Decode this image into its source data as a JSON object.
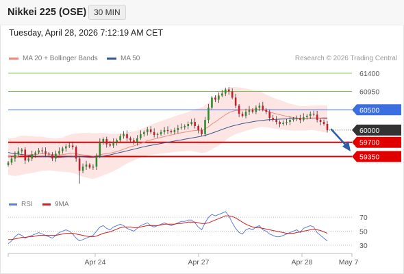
{
  "header": {
    "title": "Nikkei 225 (OSE)",
    "timeframe": "30 MIN",
    "datetime": "Tuesday, April 28, 2026 7:12:19 AM CET"
  },
  "legend": {
    "ma20_label": "MA 20 + Bollinger Bands",
    "ma50_label": "MA 50",
    "rsi_label": "RSI",
    "rsi_ma_label": "9MA",
    "credit": "Research © 2026 Trading Central"
  },
  "colors": {
    "ma20": "#f08a80",
    "ma50": "#34578f",
    "bollinger_fill": "#fde0de",
    "resistance": "#7ec04e",
    "pivot": "#3b6fe0",
    "support": "#e00000",
    "last_price": "#333333",
    "arrow": "#2a5fa8",
    "rsi": "#5b7fd8",
    "rsi_ma": "#d81b1b",
    "candle_up": "#2e8b2e",
    "candle_down": "#c0202a"
  },
  "chart_data": [
    {
      "type": "candlestick",
      "title": "Nikkei 225 (OSE)",
      "interval": "30 MIN",
      "x_tick_labels": [
        "Apr 24",
        "Apr 27",
        "Apr 28",
        "May 7"
      ],
      "ylim": [
        58650,
        61600
      ],
      "levels": [
        {
          "value": 61400,
          "label": "61400",
          "kind": "resistance"
        },
        {
          "value": 60950,
          "label": "60950",
          "kind": "resistance"
        },
        {
          "value": 60500,
          "label": "60500",
          "kind": "pivot"
        },
        {
          "value": 60000,
          "label": "60000",
          "kind": "last"
        },
        {
          "value": 59700,
          "label": "59700",
          "kind": "support"
        },
        {
          "value": 59350,
          "label": "59350",
          "kind": "support"
        }
      ],
      "close": [
        59200,
        59300,
        59400,
        59480,
        59520,
        59250,
        59300,
        59400,
        59450,
        59500,
        59480,
        59420,
        59400,
        59300,
        59420,
        59480,
        59550,
        59600,
        59620,
        59580,
        59300,
        59000,
        59100,
        59150,
        59080,
        59100,
        59350,
        59700,
        59780,
        59650,
        59620,
        59700,
        59750,
        59850,
        59900,
        59800,
        59750,
        59700,
        59800,
        59900,
        59950,
        60020,
        59950,
        59880,
        59900,
        59950,
        60000,
        59980,
        59950,
        60000,
        60050,
        60070,
        60100,
        60150,
        60200,
        60100,
        60000,
        59900,
        60250,
        60550,
        60800,
        60750,
        60850,
        60900,
        61000,
        60950,
        60800,
        60600,
        60400,
        60350,
        60450,
        60500,
        60450,
        60550,
        60600,
        60500,
        60450,
        60300,
        60250,
        60200,
        60150,
        60180,
        60200,
        60250,
        60280,
        60300,
        60250,
        60320,
        60350,
        60400,
        60380,
        60250,
        60200,
        60150,
        60000
      ],
      "ma20": [
        59350,
        59340,
        59340,
        59360,
        59380,
        59390,
        59390,
        59400,
        59400,
        59410,
        59420,
        59410,
        59410,
        59400,
        59390,
        59390,
        59395,
        59410,
        59420,
        59430,
        59420,
        59400,
        59390,
        59380,
        59370,
        59360,
        59370,
        59390,
        59410,
        59420,
        59430,
        59450,
        59470,
        59500,
        59530,
        59560,
        59590,
        59610,
        59640,
        59670,
        59700,
        59740,
        59760,
        59780,
        59800,
        59820,
        59840,
        59860,
        59880,
        59900,
        59920,
        59935,
        59950,
        59965,
        59980,
        59990,
        59995,
        60000,
        60030,
        60080,
        60150,
        60200,
        60260,
        60320,
        60380,
        60430,
        60460,
        60480,
        60490,
        60495,
        60500,
        60505,
        60505,
        60510,
        60510,
        60500,
        60470,
        60450,
        60420,
        60400,
        60380,
        60360,
        60340,
        60320,
        60310,
        60300,
        60290,
        60290,
        60290,
        60300,
        60300,
        60295,
        60290,
        60280,
        60270
      ],
      "ma50": [
        59450,
        59430,
        59420,
        59410,
        59400,
        59390,
        59380,
        59370,
        59360,
        59355,
        59350,
        59345,
        59340,
        59335,
        59330,
        59330,
        59335,
        59340,
        59345,
        59350,
        59350,
        59345,
        59340,
        59335,
        59330,
        59330,
        59335,
        59345,
        59360,
        59375,
        59390,
        59410,
        59430,
        59450,
        59470,
        59490,
        59510,
        59530,
        59550,
        59570,
        59590,
        59610,
        59625,
        59640,
        59655,
        59670,
        59685,
        59700,
        59715,
        59730,
        59745,
        59760,
        59775,
        59790,
        59805,
        59820,
        59835,
        59850,
        59870,
        59895,
        59925,
        59955,
        59985,
        60015,
        60045,
        60075,
        60100,
        60120,
        60140,
        60160,
        60175,
        60190,
        60205,
        60220,
        60230,
        60240,
        60250,
        60255,
        60260,
        60265,
        60270,
        60272,
        60275,
        60278,
        60280,
        60282,
        60285,
        60287,
        60290,
        60292,
        60294,
        60295,
        60296,
        60297,
        60298
      ],
      "bb_width": [
        450,
        460,
        470,
        480,
        480,
        470,
        460,
        450,
        440,
        430,
        420,
        410,
        400,
        400,
        400,
        410,
        420,
        440,
        460,
        480,
        500,
        520,
        540,
        550,
        560,
        560,
        550,
        540,
        520,
        500,
        480,
        460,
        440,
        420,
        400,
        380,
        370,
        360,
        350,
        350,
        350,
        360,
        370,
        380,
        390,
        400,
        410,
        420,
        430,
        440,
        450,
        460,
        470,
        480,
        500,
        520,
        540,
        560,
        580,
        600,
        620,
        630,
        640,
        640,
        630,
        620,
        600,
        580,
        560,
        540,
        520,
        500,
        480,
        460,
        440,
        420,
        400,
        390,
        380,
        370,
        360,
        350,
        340,
        330,
        320,
        310,
        300,
        300,
        300,
        300,
        300,
        310,
        320,
        330,
        340
      ]
    },
    {
      "type": "line",
      "series": [
        {
          "name": "RSI"
        },
        {
          "name": "9MA"
        }
      ],
      "y_tick_labels": [
        "70",
        "50",
        "30"
      ],
      "ylim": [
        20,
        80
      ],
      "rsi": [
        32,
        36,
        42,
        46,
        44,
        40,
        42,
        44,
        46,
        48,
        46,
        44,
        42,
        40,
        44,
        48,
        50,
        52,
        50,
        46,
        40,
        36,
        38,
        40,
        42,
        44,
        50,
        56,
        58,
        54,
        52,
        56,
        58,
        60,
        58,
        54,
        52,
        50,
        54,
        58,
        60,
        62,
        58,
        56,
        58,
        60,
        62,
        60,
        58,
        60,
        62,
        64,
        64,
        66,
        66,
        62,
        56,
        52,
        62,
        70,
        74,
        72,
        74,
        76,
        78,
        72,
        62,
        54,
        48,
        46,
        52,
        54,
        52,
        56,
        58,
        52,
        50,
        46,
        44,
        42,
        42,
        44,
        46,
        48,
        50,
        52,
        48,
        54,
        56,
        58,
        56,
        48,
        44,
        40,
        36
      ],
      "rsi_ma": [
        38,
        38,
        39,
        40,
        41,
        41,
        42,
        42,
        43,
        44,
        44,
        44,
        44,
        44,
        44,
        45,
        46,
        47,
        47,
        47,
        46,
        45,
        44,
        43,
        42,
        42,
        43,
        45,
        47,
        48,
        49,
        51,
        53,
        55,
        56,
        56,
        56,
        55,
        55,
        56,
        57,
        58,
        58,
        58,
        58,
        59,
        60,
        60,
        60,
        60,
        61,
        61,
        62,
        63,
        63,
        63,
        62,
        61,
        61,
        62,
        64,
        66,
        68,
        70,
        72,
        72,
        71,
        69,
        66,
        63,
        60,
        58,
        56,
        55,
        55,
        54,
        53,
        52,
        51,
        50,
        49,
        48,
        47,
        47,
        47,
        48,
        49,
        50,
        51,
        52,
        53,
        52,
        51,
        49,
        47
      ]
    }
  ]
}
